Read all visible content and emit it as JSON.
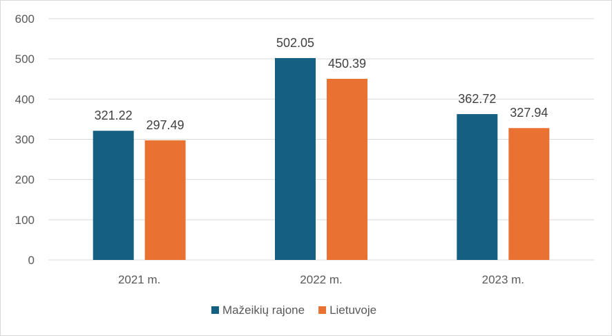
{
  "chart_data": {
    "type": "bar",
    "categories": [
      "2021 m.",
      "2022 m.",
      "2023 m."
    ],
    "series": [
      {
        "name": "Mažeikių rajone",
        "values": [
          321.22,
          502.05,
          362.72
        ],
        "color": "#156082"
      },
      {
        "name": "Lietuvoje",
        "values": [
          297.49,
          450.39,
          327.94
        ],
        "color": "#E97132"
      }
    ],
    "ylim": [
      0,
      600
    ],
    "yticks": [
      0,
      100,
      200,
      300,
      400,
      500,
      600
    ],
    "grid": true,
    "gridline_color": "#d9d9d9",
    "legend": "bottom"
  }
}
